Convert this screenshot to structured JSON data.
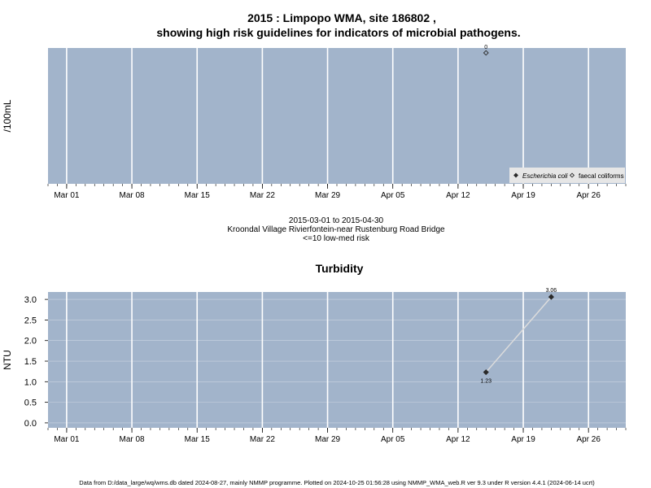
{
  "title_line1": "2015 : Limpopo WMA, site 186802 ,",
  "title_line2": "showing high risk guidelines for indicators of microbial pathogens.",
  "caption": {
    "date_range": "2015-03-01 to 2015-04-30",
    "site_name": "Kroondal Village Rivierfontein-near Rustenburg Road Bridge",
    "guideline": "<=10 low-med risk"
  },
  "footer": "Data from D:/data_large/wq/wms.db dated 2024-08-27, mainly NMMP programme. Plotted on 2024-10-25 01:56:28 using NMMP_WMA_web.R ver 9.3 under R version 4.4.1 (2024-06-14 ucrt)",
  "colors": {
    "panel": "#a2b4cb",
    "grid": "#ffffff",
    "points": "#2a2a2a",
    "line": "#dcdcdc"
  },
  "chart_data": [
    {
      "type": "scatter",
      "title": "",
      "ylabel": "/100mL",
      "x_axis": {
        "start": "2015-02-27",
        "end": "2015-04-30",
        "tick_labels": [
          "Mar 01",
          "Mar 08",
          "Mar 15",
          "Mar 22",
          "Mar 29",
          "Apr 05",
          "Apr 12",
          "Apr 19",
          "Apr 26"
        ],
        "tick_dates": [
          "2015-03-01",
          "2015-03-08",
          "2015-03-15",
          "2015-03-22",
          "2015-03-29",
          "2015-04-05",
          "2015-04-12",
          "2015-04-19",
          "2015-04-26"
        ]
      },
      "y_ticks_shown": false,
      "legend": {
        "position": "bottom-right",
        "entries": [
          {
            "label": "Escherichia coli",
            "marker": "filled-diamond",
            "italic": true
          },
          {
            "label": "faecal coliforms",
            "marker": "open-diamond",
            "italic": false
          }
        ]
      },
      "series": [
        {
          "name": "faecal coliforms",
          "marker": "open-diamond",
          "points": [
            {
              "x": "2015-04-15",
              "y": 0,
              "label": "0"
            }
          ]
        }
      ]
    },
    {
      "type": "line",
      "title": "Turbidity",
      "ylabel": "NTU",
      "x_axis": {
        "start": "2015-02-27",
        "end": "2015-04-30",
        "tick_labels": [
          "Mar 01",
          "Mar 08",
          "Mar 15",
          "Mar 22",
          "Mar 29",
          "Apr 05",
          "Apr 12",
          "Apr 19",
          "Apr 26"
        ],
        "tick_dates": [
          "2015-03-01",
          "2015-03-08",
          "2015-03-15",
          "2015-03-22",
          "2015-03-29",
          "2015-04-05",
          "2015-04-12",
          "2015-04-19",
          "2015-04-26"
        ]
      },
      "ylim": [
        -0.12,
        3.18
      ],
      "y_ticks": [
        "0.0",
        "0.5",
        "1.0",
        "1.5",
        "2.0",
        "2.5",
        "3.0"
      ],
      "series": [
        {
          "points": [
            {
              "x": "2015-04-15",
              "y": 1.23,
              "label": "1.23"
            },
            {
              "x": "2015-04-22",
              "y": 3.06,
              "label": "3.06"
            }
          ]
        }
      ]
    }
  ]
}
